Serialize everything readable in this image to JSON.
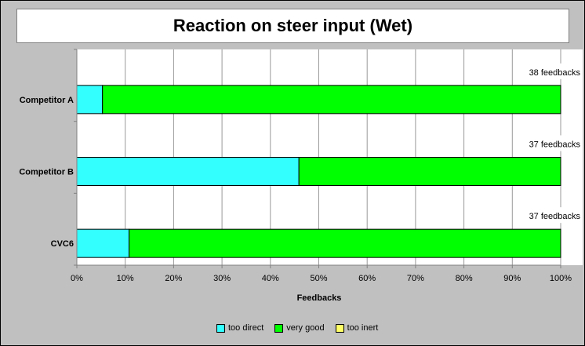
{
  "chart_data": {
    "type": "bar",
    "orientation": "horizontal",
    "stacked": true,
    "title": "Reaction on steer input (Wet)",
    "xlabel": "Feedbacks",
    "ylabel": "",
    "xlim": [
      0,
      100
    ],
    "x_ticks": [
      "0%",
      "10%",
      "20%",
      "30%",
      "40%",
      "50%",
      "60%",
      "70%",
      "80%",
      "90%",
      "100%"
    ],
    "categories": [
      "Competitor A",
      "Competitor B",
      "CVC6"
    ],
    "bar_annotations": [
      "38 feedbacks",
      "37 feedbacks",
      "37 feedbacks"
    ],
    "series": [
      {
        "name": "too direct",
        "color": "#33ffff",
        "values": [
          5.3,
          45.9,
          10.8
        ]
      },
      {
        "name": "very good",
        "color": "#00ff00",
        "values": [
          94.7,
          54.1,
          89.2
        ]
      },
      {
        "name": "too inert",
        "color": "#ffff66",
        "values": [
          0,
          0,
          0
        ]
      }
    ],
    "grid": "vertical",
    "legend_position": "bottom"
  }
}
